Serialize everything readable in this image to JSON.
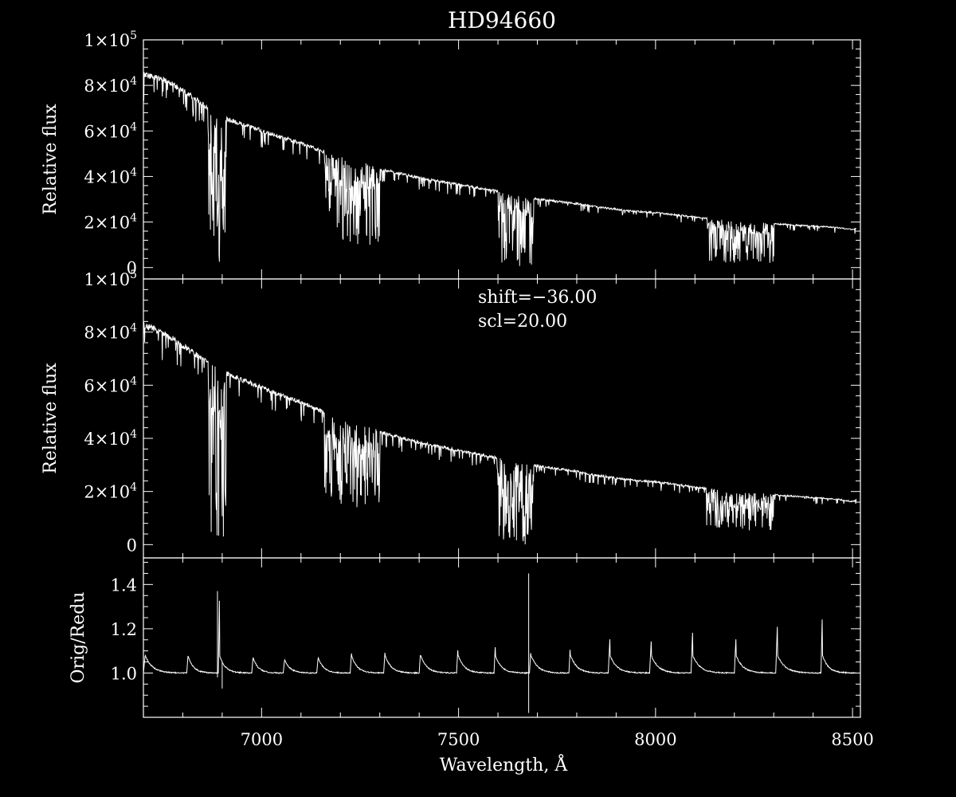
{
  "chart_data": [
    {
      "type": "line",
      "title": "HD94660",
      "ylabel": "Relative flux",
      "xlim": [
        6700,
        8520
      ],
      "ylim": [
        -5000,
        100000
      ],
      "yticks": [
        "0",
        "2×10^4",
        "4×10^4",
        "6×10^4",
        "8×10^4",
        "1×10^5"
      ],
      "series": [
        {
          "values_x": [
            6700,
            6750,
            6800,
            6850,
            6870,
            6880,
            6900,
            6950,
            7000,
            7050,
            7100,
            7150,
            7200,
            7250,
            7300,
            7350,
            7400,
            7450,
            7500,
            7550,
            7600,
            7650,
            7700,
            7750,
            7800,
            7850,
            7900,
            7950,
            8000,
            8050,
            8100,
            8150,
            8200,
            8250,
            8300,
            8350,
            8400,
            8450,
            8500,
            8510
          ],
          "values_y": [
            86000,
            84000,
            79000,
            73000,
            70000,
            69000,
            67000,
            64000,
            61000,
            58000,
            55500,
            52000,
            49000,
            46500,
            44000,
            42000,
            40000,
            38500,
            37000,
            35500,
            34000,
            31500,
            30500,
            29500,
            28500,
            27000,
            26000,
            25000,
            24500,
            23500,
            22500,
            21500,
            20500,
            20000,
            19500,
            19000,
            18500,
            18000,
            17000,
            17500
          ]
        }
      ],
      "absorption_bands": [
        {
          "from": 6865,
          "to": 6910,
          "min": 0
        },
        {
          "from": 7160,
          "to": 7300,
          "min": 10000
        },
        {
          "from": 7600,
          "to": 7690,
          "min": 0
        },
        {
          "from": 8130,
          "to": 8300,
          "min": 2000
        }
      ]
    },
    {
      "type": "line",
      "ylabel": "Relative flux",
      "annotations": [
        "shift=−36.00",
        "scl=20.00"
      ],
      "xlim": [
        6700,
        8520
      ],
      "ylim": [
        -5000,
        100000
      ],
      "yticks": [
        "0",
        "2×10^4",
        "4×10^4",
        "6×10^4",
        "8×10^4",
        "1×10^5"
      ],
      "series": [
        {
          "values_x": [
            6700,
            6750,
            6800,
            6850,
            6870,
            6880,
            6900,
            6950,
            7000,
            7050,
            7100,
            7150,
            7200,
            7250,
            7300,
            7350,
            7400,
            7450,
            7500,
            7550,
            7600,
            7650,
            7700,
            7750,
            7800,
            7850,
            7900,
            7950,
            8000,
            8050,
            8100,
            8150,
            8200,
            8250,
            8300,
            8350,
            8400,
            8450,
            8500,
            8510
          ],
          "values_y": [
            84000,
            81000,
            76000,
            71000,
            69000,
            68000,
            66000,
            63000,
            60000,
            57000,
            54500,
            51000,
            48000,
            45500,
            43000,
            41000,
            39000,
            37500,
            36000,
            34500,
            33000,
            31000,
            30000,
            29000,
            28000,
            26500,
            25500,
            24500,
            24000,
            23000,
            22000,
            21000,
            20000,
            19500,
            19000,
            18500,
            18000,
            17500,
            16500,
            17000
          ]
        }
      ],
      "absorption_bands": [
        {
          "from": 6865,
          "to": 6910,
          "min": 2000
        },
        {
          "from": 7160,
          "to": 7300,
          "min": 14000
        },
        {
          "from": 7600,
          "to": 7690,
          "min": 0
        },
        {
          "from": 8130,
          "to": 8300,
          "min": 5000
        }
      ]
    },
    {
      "type": "line",
      "ylabel": "Orig/Redu",
      "xlabel": "Wavelength, Å",
      "xlim": [
        6700,
        8520
      ],
      "ylim": [
        0.8,
        1.52
      ],
      "yticks": [
        "1.0",
        "1.2",
        "1.4"
      ],
      "xticks": [
        "7000",
        "7500",
        "8000",
        "8500"
      ],
      "series": [
        {
          "order_edges": [
            6700,
            6810,
            6890,
            6975,
            7055,
            7140,
            7225,
            7310,
            7400,
            7495,
            7590,
            7680,
            7780,
            7880,
            7985,
            8090,
            8200,
            8305,
            8420,
            8510
          ],
          "spike_heights": [
            1.08,
            1.08,
            1.37,
            1.07,
            1.06,
            1.07,
            1.1,
            1.11,
            1.1,
            1.13,
            1.14,
            1.12,
            1.14,
            1.16,
            1.15,
            1.2,
            1.16,
            1.24,
            1.29,
            1.05
          ],
          "baseline": 1.0
        }
      ],
      "outlier_lines": [
        {
          "x": 7678,
          "from": 0.82,
          "to": 1.45
        },
        {
          "x": 6888,
          "from": 0.98,
          "to": 1.37
        },
        {
          "x": 6900,
          "from": 0.93,
          "to": 1.05
        }
      ]
    }
  ]
}
